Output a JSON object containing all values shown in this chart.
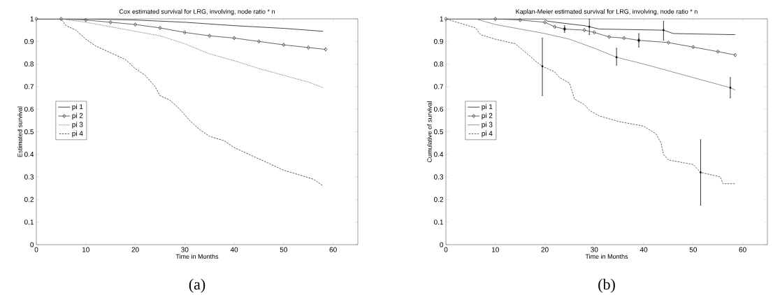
{
  "chart_data": [
    {
      "type": "line",
      "title": "Cox estimated survival for LRG, involving, node ratio * n",
      "xlabel": "Time in Months",
      "ylabel": "Estimated survival",
      "annotations": [
        "(a)"
      ],
      "xlim": [
        0,
        65
      ],
      "ylim": [
        0,
        1
      ],
      "xticks": [
        0,
        10,
        20,
        30,
        40,
        50,
        60
      ],
      "yticks": [
        0,
        0.1,
        0.2,
        0.3,
        0.4,
        0.5,
        0.6,
        0.7,
        0.8,
        0.9,
        1
      ],
      "legend": "left",
      "grid": false,
      "series": [
        {
          "name": "pi 1",
          "color": "#333333",
          "line_style": "solid",
          "marker": "none",
          "x": [
            0,
            10,
            20,
            30,
            40,
            50,
            58
          ],
          "values": [
            1,
            1,
            0.995,
            0.985,
            0.97,
            0.958,
            0.945
          ]
        },
        {
          "name": "pi 2",
          "color": "#555555",
          "line_style": "solid",
          "marker": "diamond",
          "x": [
            0,
            5,
            10,
            15,
            20,
            25,
            30,
            35,
            40,
            45,
            50,
            55,
            58.5
          ],
          "values": [
            1,
            1,
            0.995,
            0.985,
            0.975,
            0.96,
            0.94,
            0.925,
            0.915,
            0.9,
            0.885,
            0.873,
            0.865
          ]
        },
        {
          "name": "pi 3",
          "color": "#666666",
          "line_style": "dotted",
          "marker": "none",
          "x": [
            0,
            5,
            10,
            15,
            20,
            25,
            30,
            35,
            40,
            45,
            50,
            55,
            58
          ],
          "values": [
            1,
            1,
            0.985,
            0.965,
            0.945,
            0.925,
            0.89,
            0.845,
            0.815,
            0.78,
            0.75,
            0.72,
            0.695
          ]
        },
        {
          "name": "pi 4",
          "color": "#444444",
          "line_style": "dashed",
          "marker": "none",
          "x": [
            0,
            5,
            6,
            8,
            10,
            12,
            15,
            18,
            20,
            22,
            24,
            25,
            27,
            29,
            31,
            33,
            35,
            38,
            40,
            43,
            46,
            50,
            53,
            56,
            58
          ],
          "values": [
            1,
            1,
            0.97,
            0.95,
            0.91,
            0.88,
            0.85,
            0.82,
            0.78,
            0.75,
            0.7,
            0.66,
            0.64,
            0.6,
            0.55,
            0.51,
            0.48,
            0.46,
            0.43,
            0.4,
            0.37,
            0.33,
            0.31,
            0.29,
            0.26
          ]
        }
      ]
    },
    {
      "type": "line",
      "title": "Kaplan-Meier estimated survival for LRG, involving, node ratio * n",
      "xlabel": "Time in Months",
      "ylabel": "Cumulative of survival",
      "annotations": [
        "(b)"
      ],
      "xlim": [
        0,
        65
      ],
      "ylim": [
        0,
        1
      ],
      "xticks": [
        0,
        10,
        20,
        30,
        40,
        50,
        60
      ],
      "yticks": [
        0,
        0.1,
        0.2,
        0.3,
        0.4,
        0.5,
        0.6,
        0.7,
        0.8,
        0.9,
        1
      ],
      "legend": "left",
      "grid": false,
      "series": [
        {
          "name": "pi 1",
          "color": "#333333",
          "line_style": "solid",
          "marker": "none",
          "x": [
            0,
            20,
            20.5,
            24,
            28,
            29,
            31,
            44,
            46,
            58.5
          ],
          "values": [
            1,
            1,
            0.99,
            0.98,
            0.97,
            0.965,
            0.955,
            0.95,
            0.935,
            0.93
          ],
          "errors": [
            null,
            null,
            null,
            null,
            null,
            [
              0.93,
              1.0
            ],
            null,
            [
              0.905,
              0.99
            ],
            null,
            null
          ]
        },
        {
          "name": "pi 2",
          "color": "#555555",
          "line_style": "solid",
          "marker": "diamond",
          "x": [
            0,
            10,
            15,
            20,
            22,
            24,
            28,
            30,
            33,
            36,
            39,
            45,
            50,
            55,
            58.5
          ],
          "values": [
            1,
            1,
            0.995,
            0.985,
            0.965,
            0.955,
            0.95,
            0.94,
            0.92,
            0.915,
            0.905,
            0.895,
            0.875,
            0.855,
            0.84
          ],
          "errors": [
            null,
            null,
            null,
            null,
            null,
            [
              0.94,
              0.97
            ],
            null,
            null,
            null,
            null,
            [
              0.875,
              0.935
            ],
            null,
            null,
            null,
            null
          ]
        },
        {
          "name": "pi 3",
          "color": "#888888",
          "line_style": "solid",
          "marker": "none",
          "x": [
            0,
            6,
            10,
            15,
            20,
            25,
            30,
            34.5,
            40,
            45,
            50,
            55,
            57.5,
            58.5
          ],
          "values": [
            1,
            1,
            0.975,
            0.955,
            0.935,
            0.91,
            0.87,
            0.83,
            0.8,
            0.77,
            0.74,
            0.71,
            0.695,
            0.685
          ],
          "errors": [
            null,
            null,
            null,
            null,
            null,
            null,
            null,
            [
              0.795,
              0.87
            ],
            null,
            null,
            null,
            null,
            [
              0.65,
              0.74
            ],
            null
          ]
        },
        {
          "name": "pi 4",
          "color": "#555555",
          "line_style": "dashed",
          "marker": "none",
          "x": [
            0,
            6,
            7,
            10,
            14,
            17,
            18,
            19.5,
            22,
            23,
            25,
            26,
            28,
            29,
            31,
            35,
            40,
            42.5,
            43.5,
            44,
            45,
            50,
            51.5,
            55.5,
            56,
            58.5
          ],
          "values": [
            1,
            0.96,
            0.93,
            0.91,
            0.89,
            0.835,
            0.815,
            0.79,
            0.765,
            0.74,
            0.715,
            0.645,
            0.62,
            0.595,
            0.57,
            0.545,
            0.525,
            0.49,
            0.45,
            0.4,
            0.375,
            0.355,
            0.32,
            0.3,
            0.27,
            0.27
          ],
          "errors": [
            null,
            null,
            null,
            null,
            null,
            null,
            null,
            [
              0.66,
              0.915
            ],
            null,
            null,
            null,
            null,
            null,
            null,
            null,
            null,
            null,
            null,
            null,
            null,
            null,
            null,
            [
              0.175,
              0.465
            ],
            null,
            null,
            null
          ]
        }
      ]
    }
  ]
}
